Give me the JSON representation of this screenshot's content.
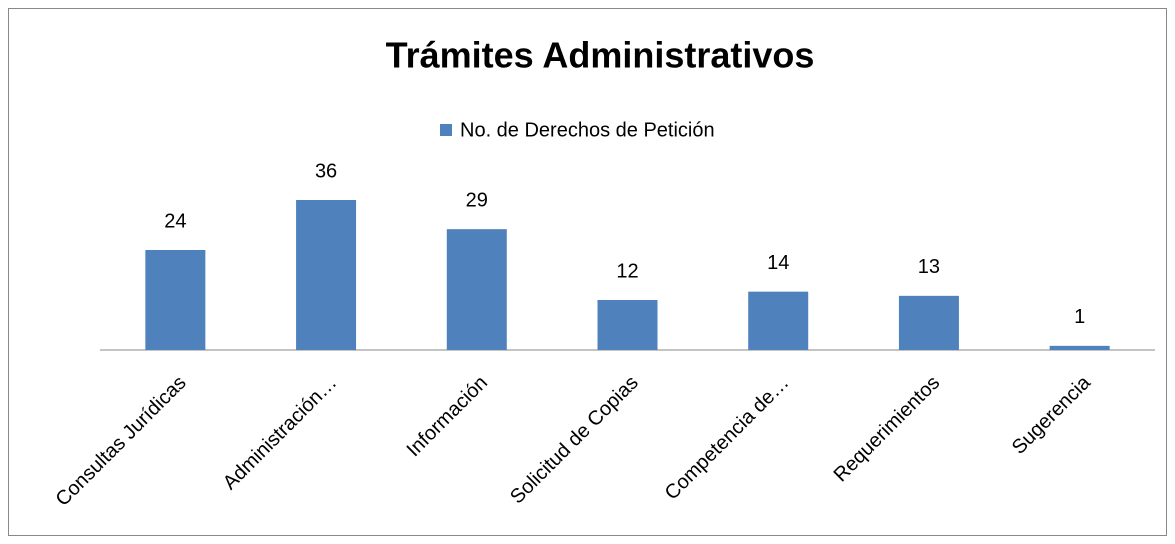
{
  "chart_data": {
    "type": "bar",
    "title": "Trámites Administrativos",
    "categories": [
      "Consultas Jurídicas",
      "Administración…",
      "Información",
      "Solicitud de Copias",
      "Competencia de…",
      "Requerimientos",
      "Sugerencia"
    ],
    "series": [
      {
        "name": "No. de Derechos de Petición",
        "color": "#4f81bd",
        "values": [
          24,
          36,
          29,
          12,
          14,
          13,
          1
        ]
      }
    ],
    "ylim": [
      0,
      48
    ],
    "legend": "top"
  }
}
